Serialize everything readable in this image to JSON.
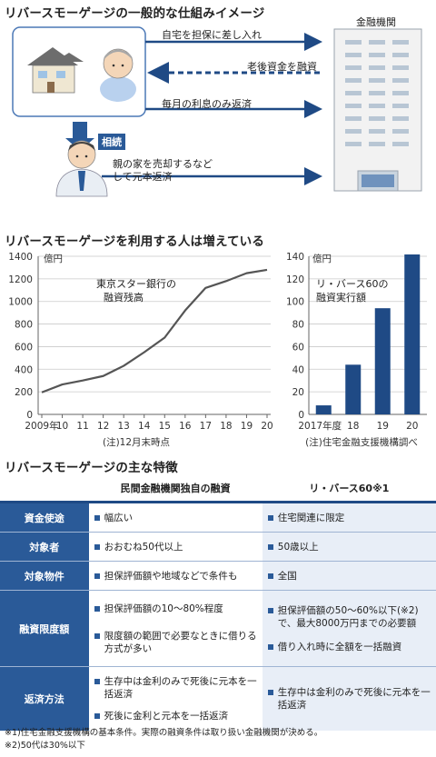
{
  "diagram": {
    "title": "リバースモーゲージの一般的な仕組みイメージ",
    "bank_label": "金融機関",
    "arrow1": "自宅を担保に差し入れ",
    "arrow2": "老後資金を融資",
    "arrow3": "毎月の利息のみ返済",
    "inherit": "相続",
    "arrow4_line1": "親の家を売却するなど",
    "arrow4_line2": "して元本返済"
  },
  "charts_title": "リバースモーゲージを利用する人は増えている",
  "chart_data": [
    {
      "type": "line",
      "unit": "億円",
      "annotation_line1": "東京スター銀行の",
      "annotation_line2": "融資残高",
      "x": [
        "2009年",
        "10",
        "11",
        "12",
        "13",
        "14",
        "15",
        "16",
        "17",
        "18",
        "19",
        "20"
      ],
      "values": [
        195,
        265,
        300,
        340,
        430,
        550,
        680,
        920,
        1120,
        1180,
        1250,
        1280
      ],
      "ylim": [
        0,
        1400
      ],
      "yticks": [
        "0",
        "200",
        "400",
        "600",
        "800",
        "1000",
        "1200",
        "1400"
      ],
      "note": "(注)12月末時点",
      "grid": true
    },
    {
      "type": "bar",
      "unit": "億円",
      "annotation_line1": "リ・バース60の",
      "annotation_line2": "融資実行額",
      "categories": [
        "2017年度",
        "18",
        "19",
        "20"
      ],
      "values": [
        8,
        44,
        94,
        142
      ],
      "ylim": [
        0,
        140
      ],
      "yticks": [
        "0",
        "20",
        "40",
        "60",
        "80",
        "100",
        "120",
        "140"
      ],
      "note": "(注)住宅金融支援機構調べ",
      "grid": true
    }
  ],
  "features": {
    "title": "リバースモーゲージの主な特徴",
    "col1": "民間金融機関独自の融資",
    "col2": "リ・バース60※1",
    "rows": [
      {
        "label": "資金使途",
        "a": [
          "幅広い"
        ],
        "b": [
          "住宅関連に限定"
        ]
      },
      {
        "label": "対象者",
        "a": [
          "おおむね50代以上"
        ],
        "b": [
          "50歳以上"
        ]
      },
      {
        "label": "対象物件",
        "a": [
          "担保評価額や地域などで条件も"
        ],
        "b": [
          "全国"
        ]
      },
      {
        "label": "融資限度額",
        "a": [
          "担保評価額の10～80%程度",
          "限度額の範囲で必要なときに借りる方式が多い"
        ],
        "b": [
          "担保評価額の50～60%以下(※2)で、最大8000万円までの必要額",
          "借り入れ時に全額を一括融資"
        ]
      },
      {
        "label": "返済方法",
        "a": [
          "生存中は金利のみで死後に元本を一括返済",
          "死後に金利と元本を一括返済"
        ],
        "b": [
          "生存中は金利のみで死後に元本を一括返済"
        ]
      }
    ],
    "note1": "※1)住宅金融支援機構の基本条件。実際の融資条件は取り扱い金融機関が決める。",
    "note2": "※2)50代は30%以下"
  },
  "colors": {
    "navy": "#1f4a85",
    "blue": "#2a5a98",
    "light": "#e8eef7",
    "line": "#555555"
  }
}
